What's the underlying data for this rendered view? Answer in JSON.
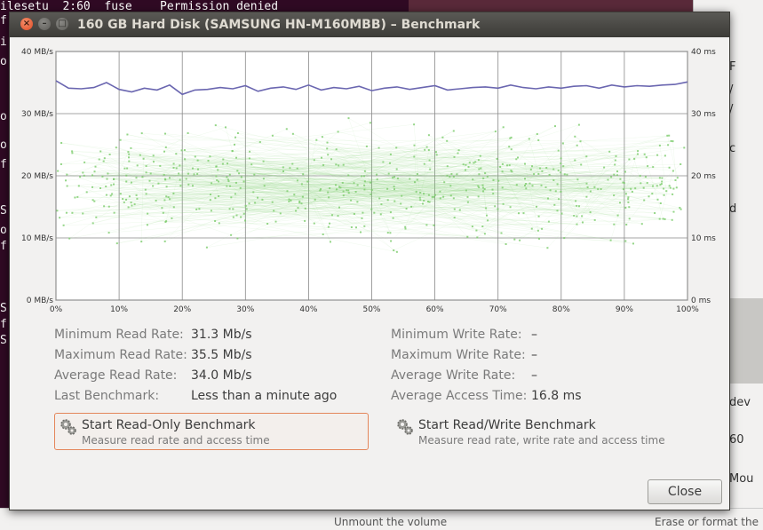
{
  "background": {
    "terminal_lines": [
      "ilesetu  2:60  fuse    Permission denied",
      "f",
      "i",
      "o",
      "o",
      "o",
      "f",
      "S",
      "o",
      "f",
      "S",
      "f",
      "S"
    ],
    "right_window_texts": [
      "F",
      "/",
      "/",
      "c",
      "d",
      "dev",
      "60",
      "Mou"
    ],
    "bottom_texts": [
      "Unmount the volume",
      "Erase or format the"
    ]
  },
  "dialog": {
    "title": "160 GB Hard Disk (SAMSUNG HN-M160MBB) – Benchmark",
    "window_buttons": {
      "close": "×",
      "minimize": "–",
      "maximize": "□"
    },
    "close_label": "Close"
  },
  "chart_data": {
    "type": "line",
    "x_ticks": [
      "0%",
      "10%",
      "20%",
      "30%",
      "40%",
      "50%",
      "60%",
      "70%",
      "80%",
      "90%",
      "100%"
    ],
    "y_left_ticks": [
      "0 MB/s",
      "10 MB/s",
      "20 MB/s",
      "30 MB/s",
      "40 MB/s"
    ],
    "y_right_ticks": [
      "0 ms",
      "10 ms",
      "20 ms",
      "30 ms",
      "40 ms"
    ],
    "ylim_left": [
      0,
      40
    ],
    "ylim_right": [
      0,
      40
    ],
    "xlim": [
      0,
      100
    ],
    "grid": true,
    "series": [
      {
        "name": "Read Rate",
        "color": "#6a66b0",
        "x": [
          0,
          2,
          4,
          6,
          8,
          10,
          12,
          14,
          16,
          18,
          20,
          22,
          24,
          26,
          28,
          30,
          32,
          34,
          36,
          38,
          40,
          42,
          44,
          46,
          48,
          50,
          52,
          54,
          56,
          58,
          60,
          62,
          64,
          66,
          68,
          70,
          72,
          74,
          76,
          78,
          80,
          82,
          84,
          86,
          88,
          90,
          92,
          94,
          96,
          98,
          100
        ],
        "values": [
          35.3,
          34.1,
          34.0,
          34.2,
          35.0,
          33.9,
          33.5,
          34.1,
          33.8,
          34.6,
          33.1,
          33.8,
          33.9,
          34.2,
          34.0,
          34.5,
          33.6,
          34.1,
          34.3,
          33.9,
          34.6,
          33.8,
          34.2,
          34.0,
          34.4,
          33.7,
          34.1,
          34.3,
          33.9,
          34.2,
          34.5,
          33.8,
          34.0,
          34.2,
          34.3,
          34.1,
          34.6,
          34.2,
          34.0,
          34.3,
          34.1,
          34.4,
          34.5,
          34.1,
          34.6,
          34.3,
          34.5,
          34.4,
          34.6,
          34.7,
          35.1
        ]
      },
      {
        "name": "Access Time",
        "color": "#7ccc6c",
        "type": "scatter",
        "x_range": [
          0,
          100
        ],
        "y_range_ms": [
          6,
          31
        ],
        "count": 620
      }
    ]
  },
  "stats": {
    "min_read_label": "Minimum Read Rate:",
    "min_read_value": "31.3 Mb/s",
    "max_read_label": "Maximum Read Rate:",
    "max_read_value": "35.5 Mb/s",
    "avg_read_label": "Average Read Rate:",
    "avg_read_value": "34.0 Mb/s",
    "last_bench_label": "Last Benchmark:",
    "last_bench_value": "Less than a minute ago",
    "min_write_label": "Minimum Write Rate:",
    "min_write_value": "–",
    "max_write_label": "Maximum Write Rate:",
    "max_write_value": "–",
    "avg_write_label": "Average Write Rate:",
    "avg_write_value": "–",
    "avg_access_label": "Average Access Time:",
    "avg_access_value": "16.8 ms"
  },
  "buttons": {
    "read_only_title": "Start Read-Only Benchmark",
    "read_only_sub": "Measure read rate and access time",
    "read_write_title": "Start Read/Write Benchmark",
    "read_write_sub": "Measure read rate, write rate and access time"
  }
}
